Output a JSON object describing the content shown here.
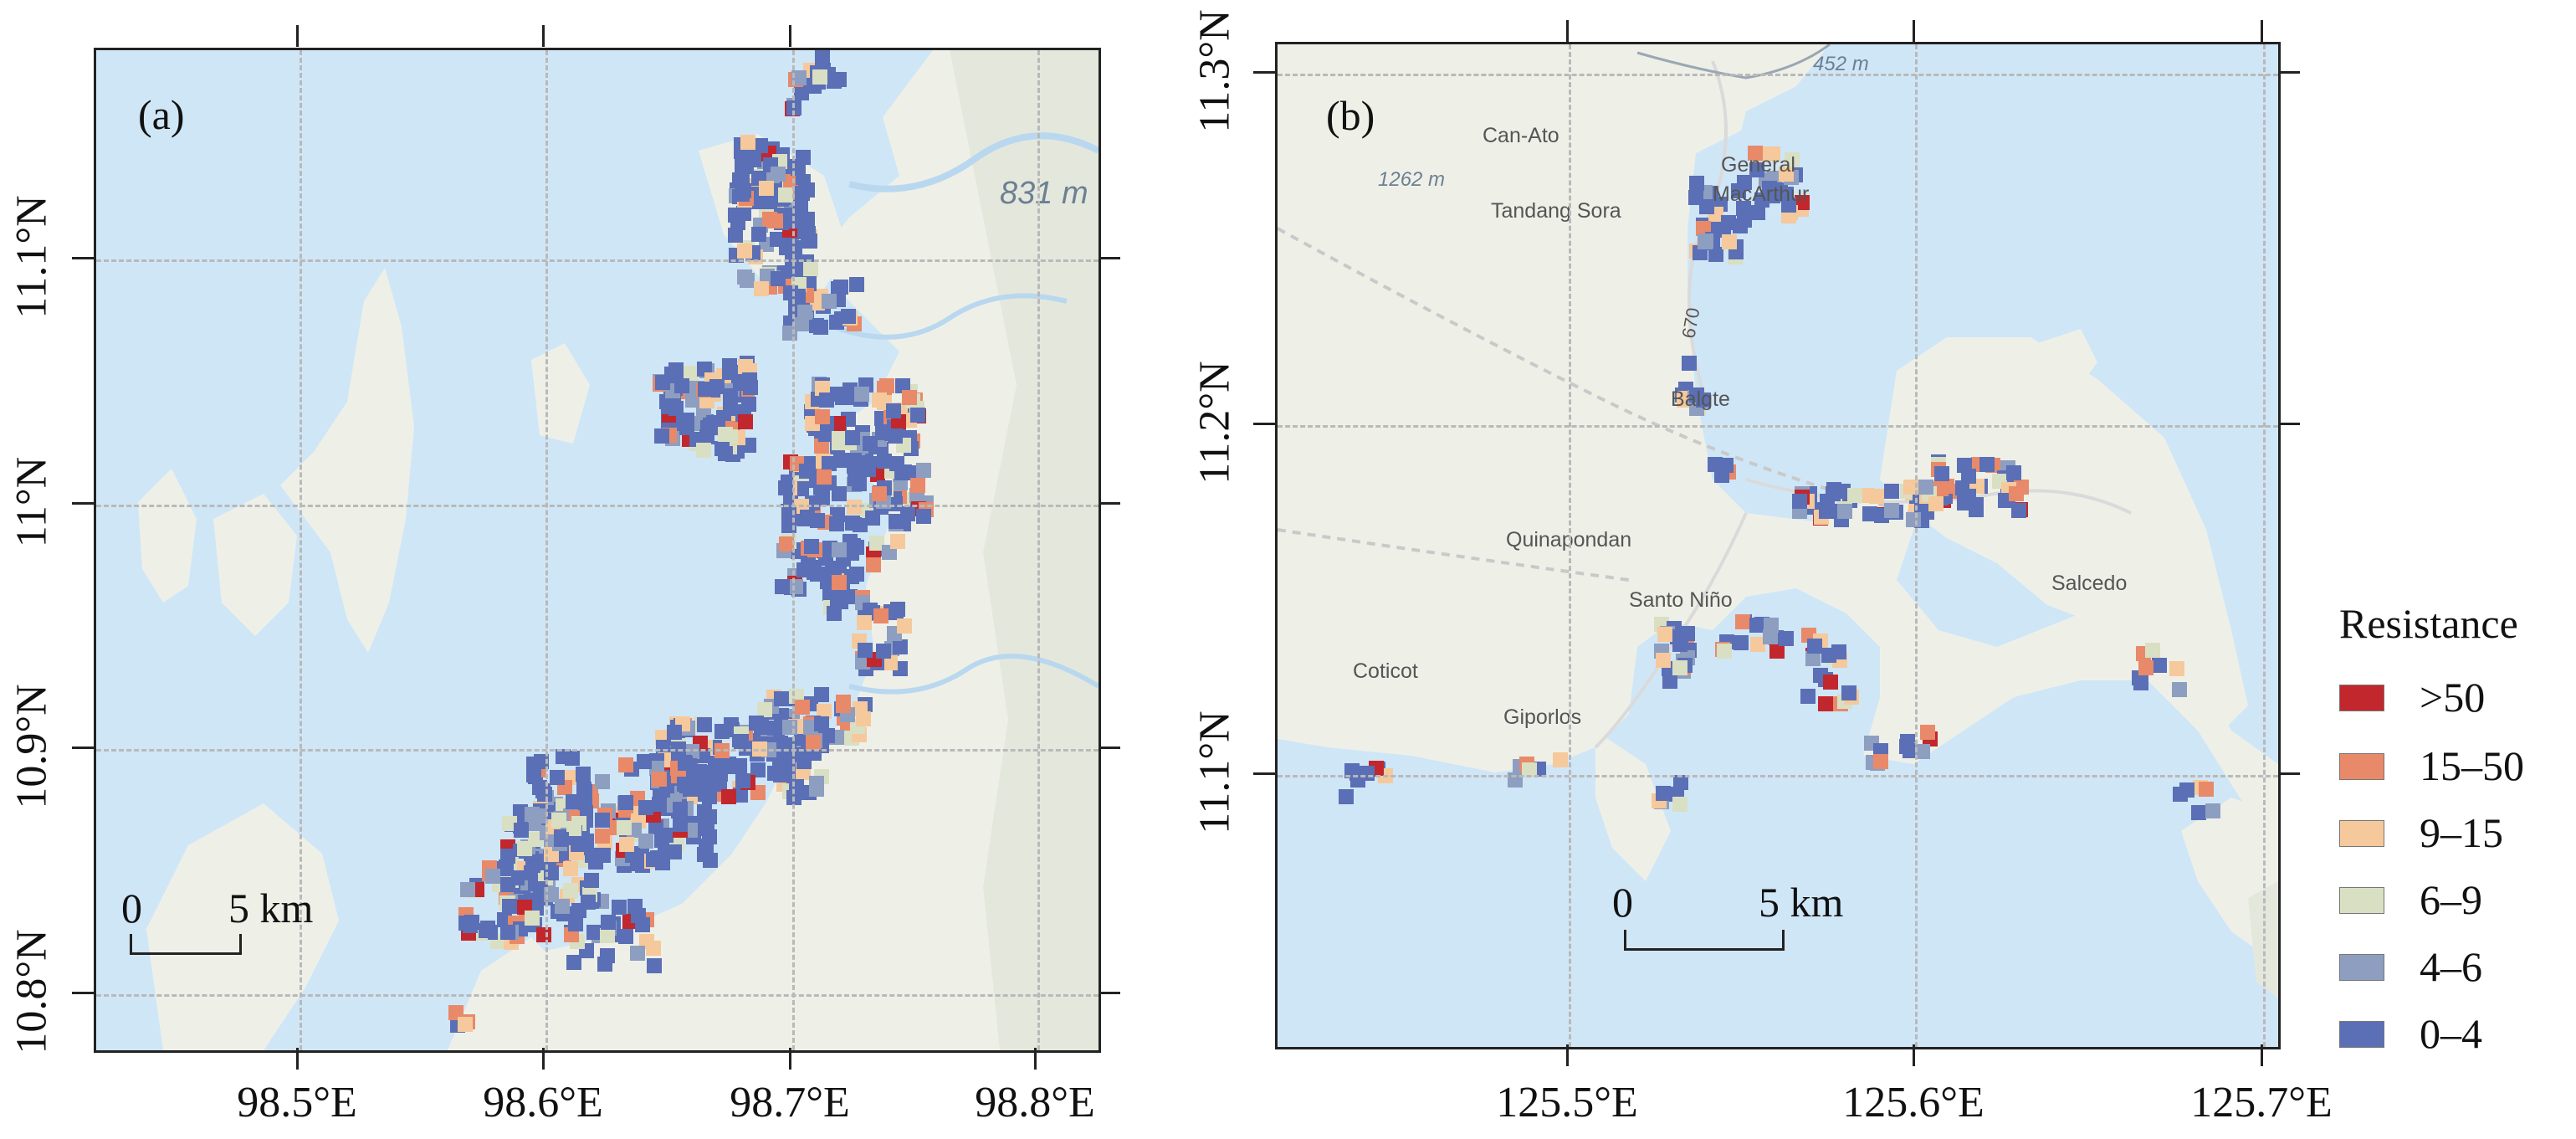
{
  "panels": {
    "a": {
      "label": "(a)",
      "x_ticks": [
        "98.5°E",
        "98.6°E",
        "98.7°E",
        "98.8°E"
      ],
      "y_ticks": [
        "11.1°N",
        "11°N",
        "10.9°N",
        "10.8°N"
      ],
      "elevation_labels": [
        "831 m"
      ],
      "scale_bar": {
        "start": "0",
        "end": "5 km"
      }
    },
    "b": {
      "label": "(b)",
      "x_ticks": [
        "125.5°E",
        "125.6°E",
        "125.7°E"
      ],
      "y_ticks": [
        "11.3°N",
        "11.2°N",
        "11.1°N"
      ],
      "elevation_labels": [
        "452 m",
        "1262 m"
      ],
      "place_names": [
        "Can-Ato",
        "General",
        "MacArthur",
        "Tandang Sora",
        "670",
        "Balgte",
        "Quinapondan",
        "Santo Niño",
        "Salcedo",
        "Coticot",
        "Giporlos"
      ],
      "scale_bar": {
        "start": "0",
        "end": "5 km"
      }
    }
  },
  "legend": {
    "title": "Resistance",
    "classes": [
      {
        "label": ">50",
        "color": "#c1272d"
      },
      {
        "label": "15–50",
        "color": "#e8896a"
      },
      {
        "label": "9–15",
        "color": "#f5c99b"
      },
      {
        "label": "6–9",
        "color": "#d9dfc3"
      },
      {
        "label": "4–6",
        "color": "#8d9ec0"
      },
      {
        "label": "0–4",
        "color": "#5a6fb5"
      }
    ]
  },
  "colors": {
    "water": "#cfe6f7",
    "land": "#eef0e8",
    "gridline": "#b9b9b9"
  }
}
